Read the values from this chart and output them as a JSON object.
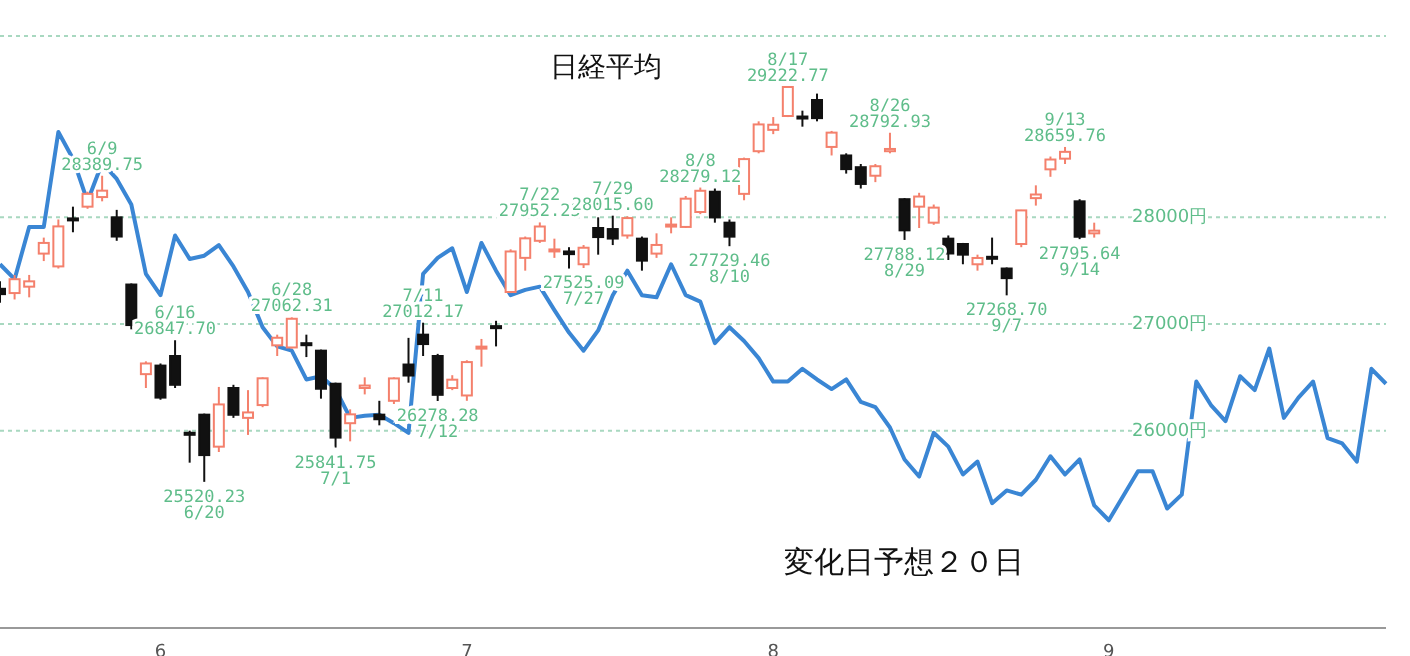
{
  "chart_data": {
    "type": "candlestick",
    "title": "日経平均",
    "categories": [
      null,
      null,
      null,
      null,
      null,
      null,
      null,
      null,
      null,
      null,
      null,
      "6",
      null,
      null,
      null,
      null,
      null,
      null,
      null,
      null,
      null,
      null,
      null,
      null,
      null,
      null,
      null,
      null,
      null,
      null,
      null,
      null,
      "7",
      null,
      null,
      null,
      null,
      null,
      null,
      null,
      null,
      null,
      null,
      null,
      null,
      null,
      null,
      null,
      null,
      null,
      null,
      null,
      null,
      "8",
      null,
      null,
      null,
      null,
      null,
      null,
      null,
      null,
      null,
      null,
      null,
      null,
      null,
      null,
      null,
      null,
      null,
      null,
      null,
      null,
      null,
      null,
      "9",
      null,
      null,
      null,
      null,
      null,
      null,
      null,
      null,
      null,
      null,
      null,
      null,
      null,
      null,
      null,
      null,
      null,
      null,
      null
    ],
    "ohlc": [
      [
        27330,
        27400,
        27200,
        27280
      ],
      [
        27290,
        27460,
        27230,
        27420
      ],
      [
        27350,
        27460,
        27250,
        27400
      ],
      [
        27660,
        27810,
        27590,
        27760
      ],
      [
        27540,
        27980,
        27520,
        27915
      ],
      [
        27990,
        28100,
        27860,
        27980
      ],
      [
        28100,
        28240,
        28080,
        28220
      ],
      [
        28190,
        28389.75,
        28150,
        28250
      ],
      [
        28000,
        28070,
        27780,
        27820
      ],
      [
        27370,
        27380,
        26950,
        26990
      ],
      [
        26530,
        26650,
        26400,
        26630
      ],
      [
        26610,
        26630,
        26290,
        26310
      ],
      [
        26700,
        26847.7,
        26400,
        26430
      ],
      [
        25980,
        26000,
        25700,
        25963
      ],
      [
        26150,
        26160,
        25520.23,
        25771
      ],
      [
        25850,
        26410,
        25800,
        26246
      ],
      [
        26400,
        26430,
        26120,
        26149
      ],
      [
        26120,
        26380,
        25960,
        26171
      ],
      [
        26240,
        26500,
        26220,
        26491
      ],
      [
        26800,
        26900,
        26700,
        26871
      ],
      [
        26780,
        27062.31,
        26770,
        27049
      ],
      [
        26820,
        26900,
        26690,
        26804
      ],
      [
        26750,
        26760,
        26300,
        26393
      ],
      [
        26440,
        26450,
        25841.75,
        25935
      ],
      [
        26070,
        26200,
        25900,
        26153
      ],
      [
        26400,
        26500,
        26340,
        26423
      ],
      [
        26150,
        26280,
        26050,
        26107
      ],
      [
        26280,
        26500,
        26250,
        26490
      ],
      [
        26620,
        26870,
        26450,
        26517
      ],
      [
        26900,
        27012.17,
        26700,
        26812
      ],
      [
        26700,
        26720,
        26278.28,
        26336
      ],
      [
        26400,
        26520,
        26380,
        26478
      ],
      [
        26330,
        26660,
        26280,
        26643
      ],
      [
        26780,
        26860,
        26600,
        26788
      ],
      [
        26980,
        27030,
        26790,
        26961
      ],
      [
        27300,
        27700,
        27290,
        27680
      ],
      [
        27620,
        27820,
        27500,
        27803
      ],
      [
        27780,
        27952.25,
        27760,
        27914
      ],
      [
        27690,
        27800,
        27620,
        27699
      ],
      [
        27680,
        27720,
        27520,
        27655
      ],
      [
        27560,
        27740,
        27525.09,
        27715
      ],
      [
        27900,
        28000,
        27650,
        27815
      ],
      [
        27890,
        28015.6,
        27740,
        27801
      ],
      [
        27830,
        28010,
        27800,
        27993
      ],
      [
        27800,
        27820,
        27500,
        27594
      ],
      [
        27660,
        27850,
        27620,
        27741
      ],
      [
        27920,
        28000,
        27850,
        27932
      ],
      [
        27910,
        28200,
        27900,
        28175
      ],
      [
        28050,
        28279.12,
        28030,
        28249
      ],
      [
        28240,
        28270,
        27950,
        27999
      ],
      [
        27950,
        27980,
        27729.46,
        27819
      ],
      [
        28220,
        28560,
        28160,
        28546
      ],
      [
        28620,
        28900,
        28600,
        28871
      ],
      [
        28820,
        28940,
        28780,
        28868
      ],
      [
        28950,
        29222.77,
        28940,
        29222
      ],
      [
        28945,
        29000,
        28850,
        28942
      ],
      [
        29100,
        29160,
        28900,
        28930
      ],
      [
        28660,
        28810,
        28580,
        28794
      ],
      [
        28580,
        28600,
        28410,
        28452
      ],
      [
        28470,
        28500,
        28270,
        28313
      ],
      [
        28390,
        28500,
        28330,
        28479
      ],
      [
        28620,
        28792.93,
        28600,
        28641
      ],
      [
        28170,
        28180,
        27788.12,
        27878
      ],
      [
        28100,
        28230,
        27900,
        28195
      ],
      [
        27950,
        28120,
        27930,
        28091
      ],
      [
        27800,
        27830,
        27600,
        27661
      ],
      [
        27750,
        27760,
        27560,
        27650
      ],
      [
        27560,
        27650,
        27500,
        27619
      ],
      [
        27630,
        27810,
        27560,
        27626
      ],
      [
        27520,
        27530,
        27268.7,
        27430
      ],
      [
        27750,
        28070,
        27720,
        28065
      ],
      [
        28180,
        28300,
        28110,
        28214
      ],
      [
        28450,
        28570,
        28380,
        28542
      ],
      [
        28550,
        28659.76,
        28500,
        28614
      ],
      [
        28150,
        28170,
        27795.64,
        27818
      ],
      [
        27850,
        27950,
        27810,
        27875
      ],
      null,
      null,
      null,
      null,
      null,
      null,
      null,
      null,
      null,
      null,
      null,
      null,
      null,
      null,
      null,
      null,
      null,
      null,
      null,
      null
    ],
    "colors": [
      "#111111",
      "#f4806c",
      "#f4806c",
      "#f4806c",
      "#f4806c",
      "#111111",
      "#f4806c",
      "#f4806c",
      "#111111",
      "#111111",
      "#f4806c",
      "#111111",
      "#111111",
      "#111111",
      "#111111",
      "#f4806c",
      "#111111",
      "#f4806c",
      "#f4806c",
      "#f4806c",
      "#f4806c",
      "#111111",
      "#111111",
      "#111111",
      "#f4806c",
      "#f4806c",
      "#111111",
      "#f4806c",
      "#111111",
      "#111111",
      "#111111",
      "#f4806c",
      "#f4806c",
      "#f4806c",
      "#111111",
      "#f4806c",
      "#f4806c",
      "#f4806c",
      "#f4806c",
      "#111111",
      "#f4806c",
      "#111111",
      "#111111",
      "#f4806c",
      "#111111",
      "#f4806c",
      "#f4806c",
      "#f4806c",
      "#f4806c",
      "#111111",
      "#111111",
      "#f4806c",
      "#f4806c",
      "#f4806c",
      "#f4806c",
      "#111111",
      "#111111",
      "#f4806c",
      "#111111",
      "#111111",
      "#f4806c",
      "#f4806c",
      "#111111",
      "#f4806c",
      "#f4806c",
      "#111111",
      "#111111",
      "#f4806c",
      "#111111",
      "#111111",
      "#f4806c",
      "#f4806c",
      "#f4806c",
      "#f4806c",
      "#111111",
      "#f4806c",
      null,
      null,
      null,
      null,
      null,
      null,
      null,
      null,
      null,
      null,
      null,
      null,
      null,
      null,
      null,
      null,
      null,
      null,
      null,
      null
    ],
    "series": [
      {
        "type": "line",
        "color": "#3a86d4",
        "values": [
          27560,
          27420,
          27910,
          27910,
          28800,
          28550,
          28150,
          28510,
          28360,
          28120,
          27470,
          27270,
          27830,
          27610,
          27640,
          27740,
          27540,
          27300,
          26970,
          26790,
          26750,
          26480,
          26510,
          26390,
          26120,
          26140,
          26150,
          26070,
          25980,
          27470,
          27620,
          27710,
          27300,
          27760,
          27500,
          27270,
          27320,
          27350,
          27130,
          26920,
          26750,
          26940,
          27270,
          27500,
          27270,
          27250,
          27560,
          27270,
          27210,
          26820,
          26970,
          26840,
          26680,
          26460,
          26460,
          26580,
          26480,
          26390,
          26480,
          26270,
          26220,
          26030,
          25730,
          25570,
          25980,
          25850,
          25590,
          25710,
          25320,
          25440,
          25400,
          25540,
          25760,
          25590,
          25730,
          25300,
          25160,
          25390,
          25620,
          25620,
          25270,
          25400,
          26460,
          26240,
          26090,
          26510,
          26380,
          26770,
          26120,
          26310,
          26460,
          25930,
          25880,
          25710,
          26580,
          26440
        ]
      }
    ],
    "ylim": [
      24150,
      29700
    ],
    "yticks": [
      {
        "value": 26000,
        "label": "26000円"
      },
      {
        "value": 27000,
        "label": "27000円"
      },
      {
        "value": 28000,
        "label": "28000円"
      }
    ],
    "grid": "y",
    "annotations": [
      {
        "text": "6/9\n28389.75",
        "y": 28389.75
      },
      {
        "text": "6/16\n26847.70",
        "y": 26847.7
      },
      {
        "text": "25520.23\n6/20",
        "y": 25520.23
      },
      {
        "text": "6/28\n27062.31",
        "y": 27062.31
      },
      {
        "text": "25841.75\n7/1",
        "y": 25841.75
      },
      {
        "text": "7/11\n27012.17",
        "y": 27012.17
      },
      {
        "text": "26278.28\n7/12",
        "y": 26278.28
      },
      {
        "text": "7/22\n27952.25",
        "y": 27952.25
      },
      {
        "text": "27525.09\n7/27",
        "y": 27525.09
      },
      {
        "text": "7/29\n28015.60",
        "y": 28015.6
      },
      {
        "text": "8/8\n28279.12",
        "y": 28279.12
      },
      {
        "text": "27729.46\n8/10",
        "y": 27729.46
      },
      {
        "text": "8/17\n29222.77",
        "y": 29222.77
      },
      {
        "text": "8/26\n28792.93",
        "y": 28792.93
      },
      {
        "text": "27788.12\n8/29",
        "y": 27788.12
      },
      {
        "text": "27268.70\n9/7",
        "y": 27268.7
      },
      {
        "text": "9/13\n28659.76",
        "y": 28659.76
      },
      {
        "text": "27795.64\n9/14",
        "y": 27795.64
      },
      "変化日予想２０日"
    ]
  }
}
